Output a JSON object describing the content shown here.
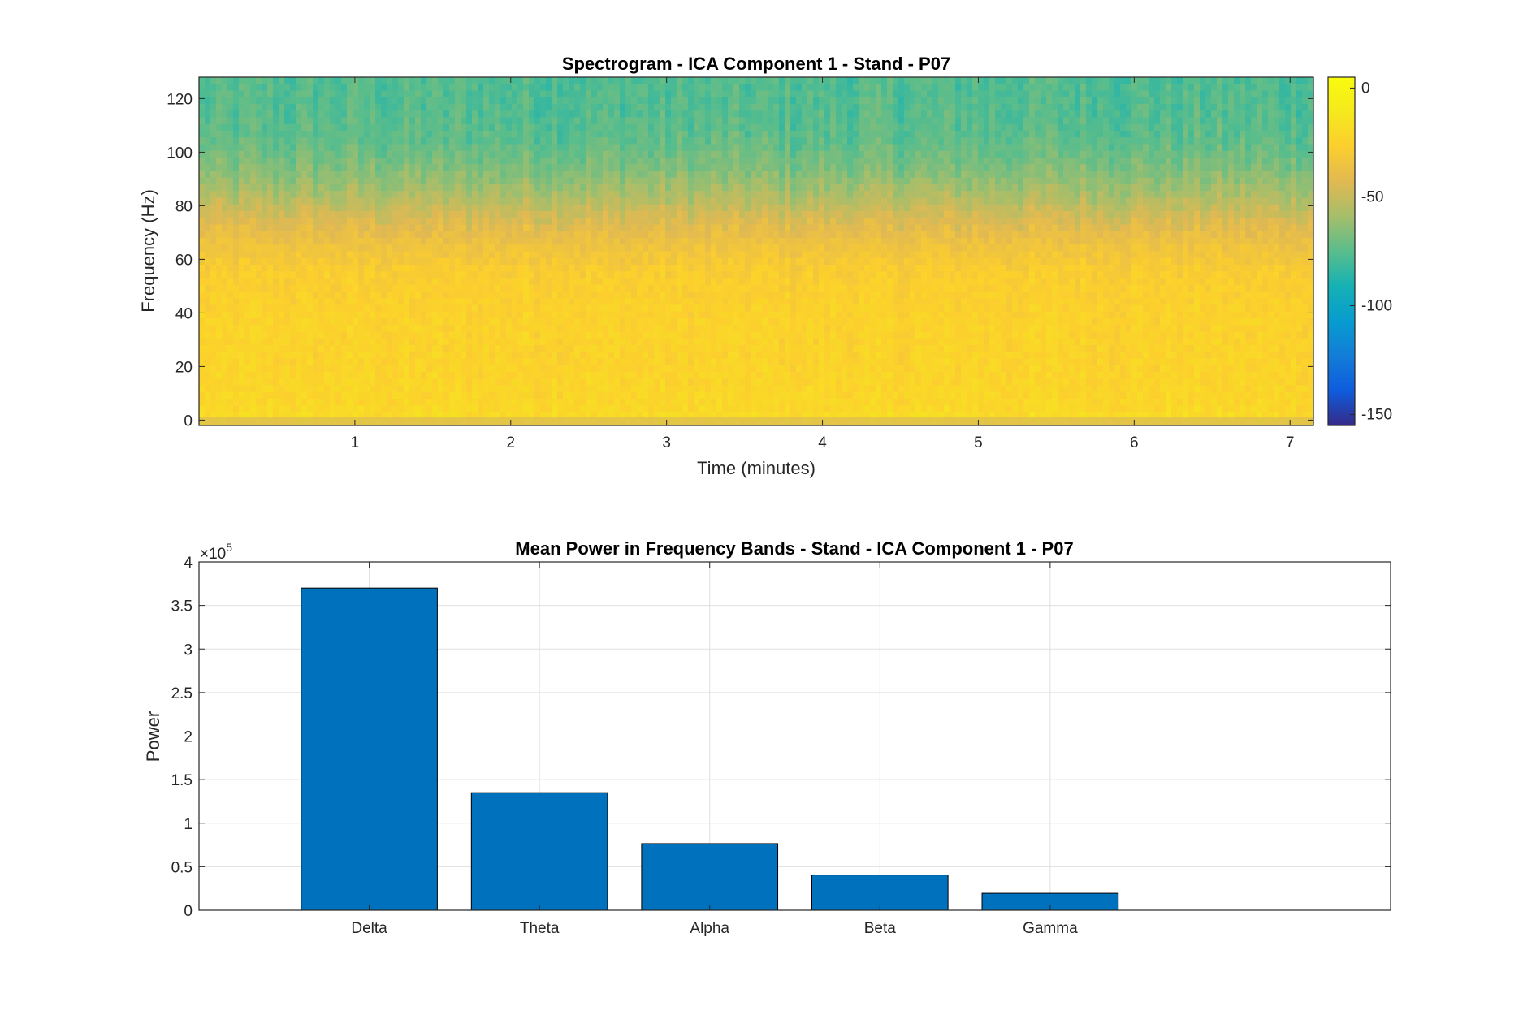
{
  "chart_data": [
    {
      "type": "heatmap",
      "title": "Spectrogram - ICA Component 1 - Stand - P07",
      "xlabel": "Time (minutes)",
      "ylabel": "Frequency (Hz)",
      "xlim": [
        0,
        7.15
      ],
      "ylim": [
        -2,
        128
      ],
      "xticks": [
        1,
        2,
        3,
        4,
        5,
        6,
        7
      ],
      "yticks": [
        0,
        20,
        40,
        60,
        80,
        100,
        120
      ],
      "colormap": "parula",
      "colorbar": {
        "lim": [
          -155,
          5
        ],
        "ticks": [
          0,
          -50,
          -100,
          -150
        ]
      },
      "power_profile_db": {
        "frequency_hz": [
          0,
          5,
          20,
          40,
          55,
          65,
          75,
          85,
          95,
          105,
          115,
          128
        ],
        "power_db": [
          -18,
          -22,
          -24,
          -25,
          -28,
          -35,
          -45,
          -58,
          -68,
          -74,
          -76,
          -77
        ]
      },
      "grid": false
    },
    {
      "type": "bar",
      "title": "Mean Power in Frequency Bands - Stand - ICA Component 1 - P07",
      "xlabel": "",
      "ylabel": "Power",
      "categories": [
        "Delta",
        "Theta",
        "Alpha",
        "Beta",
        "Gamma"
      ],
      "values": [
        370000,
        135000,
        76500,
        40500,
        19500
      ],
      "ylim": [
        0,
        400000
      ],
      "yticks": [
        "0",
        "0.5",
        "1",
        "1.5",
        "2",
        "2.5",
        "3",
        "3.5",
        "4"
      ],
      "exponent_label": "×10",
      "exponent": "5",
      "bar_color": "#0072BD",
      "grid": true
    }
  ]
}
